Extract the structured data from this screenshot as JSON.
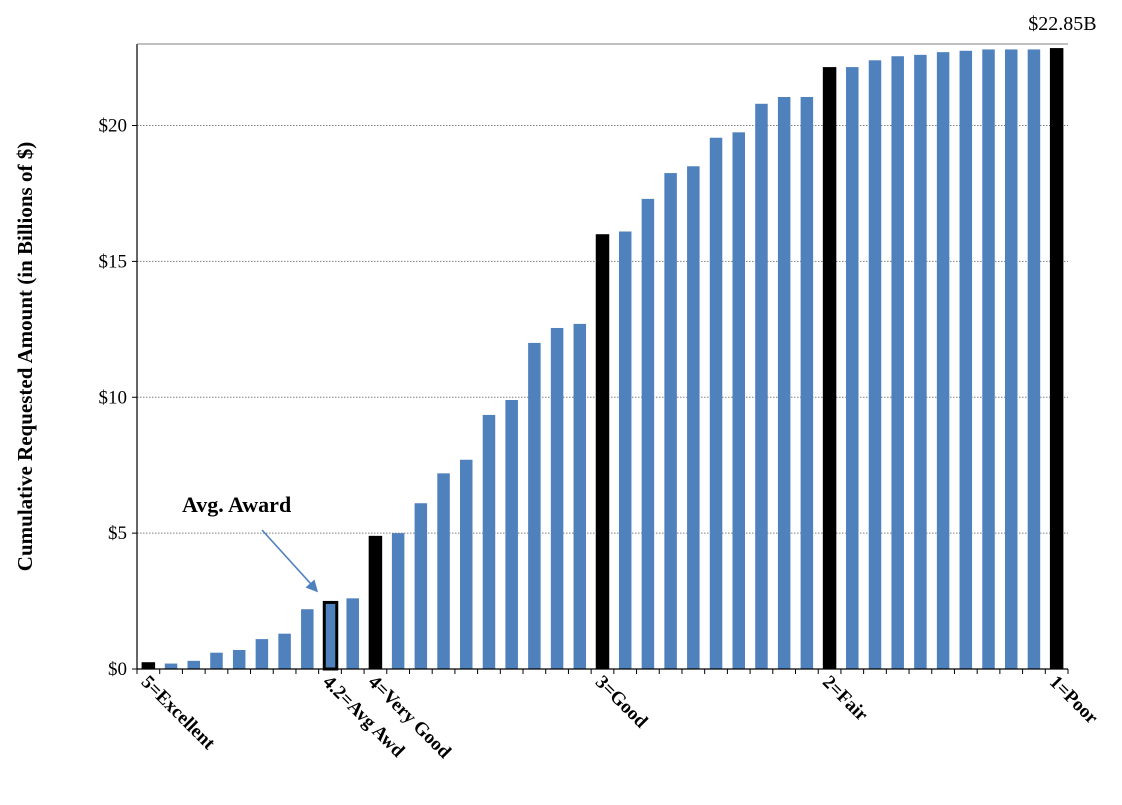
{
  "chart_data": {
    "type": "bar",
    "ylabel": "Cumulative Requested Amount (in Billions of $)",
    "ylim": [
      0,
      23
    ],
    "yticks": [
      {
        "value": 0,
        "label": "$0"
      },
      {
        "value": 5,
        "label": "$5"
      },
      {
        "value": 10,
        "label": "$10"
      },
      {
        "value": 15,
        "label": "$15"
      },
      {
        "value": 20,
        "label": "$20"
      }
    ],
    "grid": true,
    "values": [
      0.25,
      0.2,
      0.3,
      0.6,
      0.7,
      1.1,
      1.3,
      2.2,
      2.45,
      2.6,
      4.9,
      5.0,
      6.1,
      7.2,
      7.7,
      9.35,
      9.9,
      12.0,
      12.55,
      12.7,
      16.0,
      16.1,
      17.3,
      18.25,
      18.5,
      19.55,
      19.75,
      20.8,
      21.05,
      21.05,
      22.15,
      22.15,
      22.4,
      22.55,
      22.6,
      22.7,
      22.75,
      22.8,
      22.8,
      22.8,
      22.85
    ],
    "colors": {
      "bar": "#4F81BD",
      "highlight": "#000000",
      "grid": "#808080",
      "arrow": "#4F81BD"
    },
    "highlight_indices": [
      0,
      10,
      20,
      30,
      40
    ],
    "outlined_indices": [
      8
    ],
    "x_labels": [
      {
        "index": 0,
        "label": "5=Excellent"
      },
      {
        "index": 8,
        "label": "4.2=Avg Awd"
      },
      {
        "index": 10,
        "label": "4=Very Good"
      },
      {
        "index": 20,
        "label": "3=Good"
      },
      {
        "index": 30,
        "label": "2=Fair"
      },
      {
        "index": 40,
        "label": "1=Poor"
      }
    ],
    "annotations": {
      "avg_award": {
        "text": "Avg. Award",
        "target_index": 8
      },
      "total": {
        "text": "$22.85B",
        "target_index": 40
      }
    }
  }
}
